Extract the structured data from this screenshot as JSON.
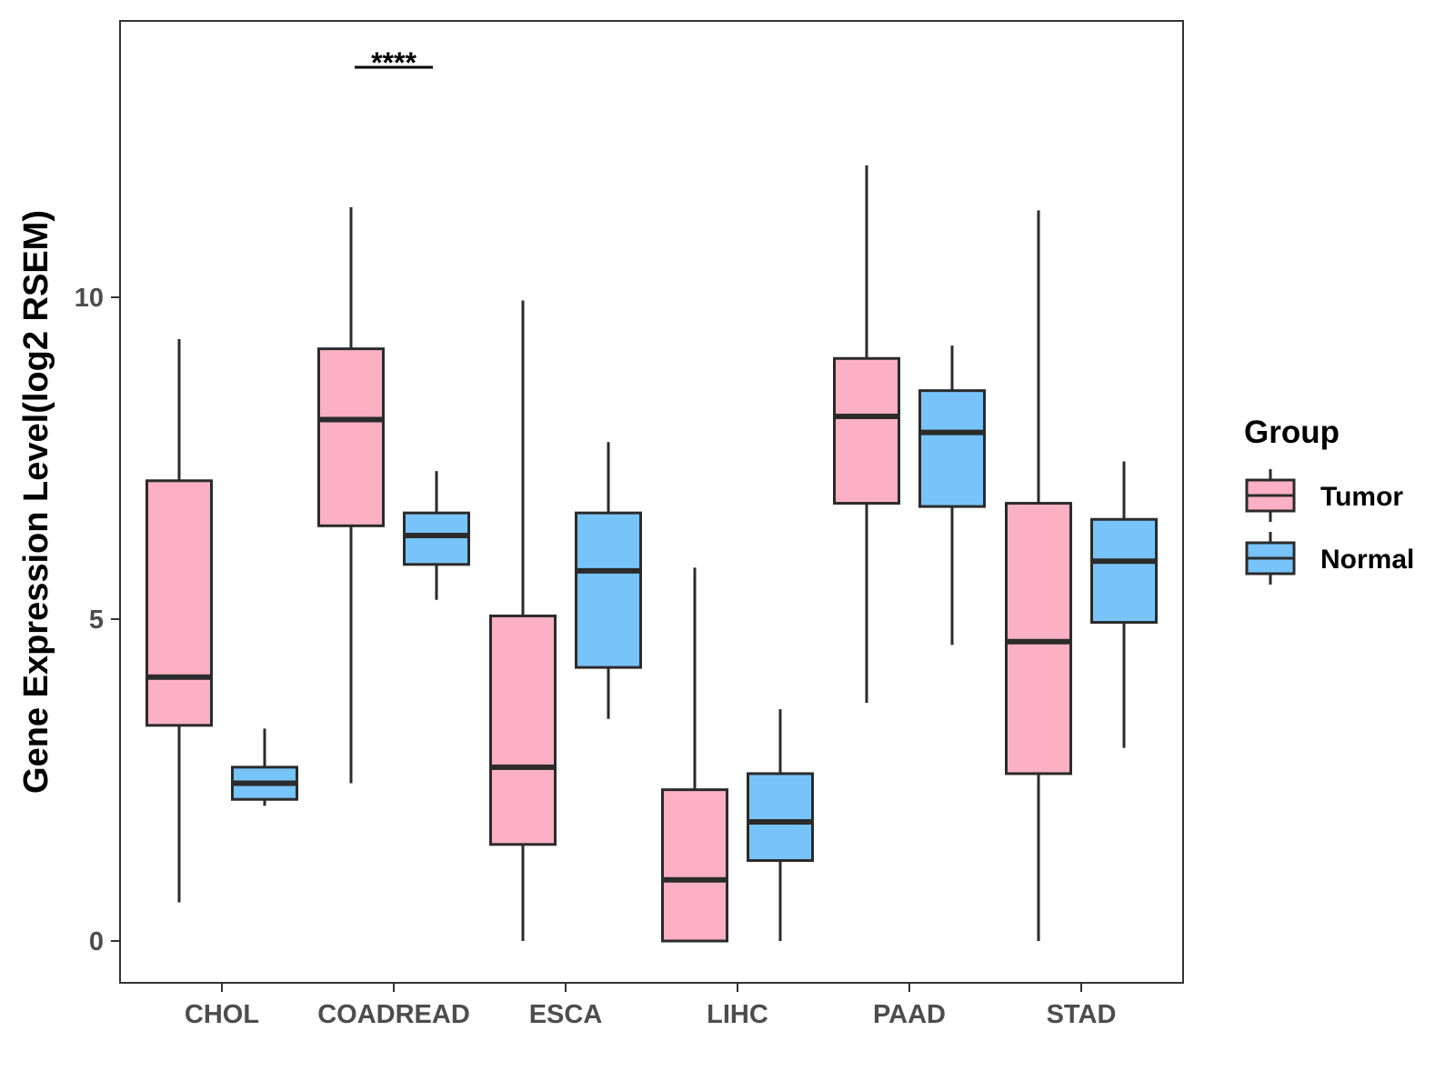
{
  "chart_data": {
    "type": "boxplot",
    "title": "",
    "xlabel": "",
    "ylabel": "Gene Expression Level(log2 RSEM)",
    "ylim": [
      -0.65,
      14.3
    ],
    "yticks": [
      0,
      5,
      10
    ],
    "ytick_labels": [
      "0",
      "5",
      "10"
    ],
    "grid": false,
    "categories": [
      "CHOL",
      "COADREAD",
      "ESCA",
      "LIHC",
      "PAAD",
      "STAD"
    ],
    "series": [
      {
        "name": "Tumor",
        "color": "#FBB1C3",
        "boxes": [
          {
            "min": 0.6,
            "q1": 3.35,
            "median": 4.1,
            "q3": 7.15,
            "max": 9.35
          },
          {
            "min": 2.45,
            "q1": 6.45,
            "median": 8.1,
            "q3": 9.2,
            "max": 11.4
          },
          {
            "min": 0.0,
            "q1": 1.5,
            "median": 2.7,
            "q3": 5.05,
            "max": 9.95
          },
          {
            "min": 0.0,
            "q1": 0.0,
            "median": 0.95,
            "q3": 2.35,
            "max": 5.8
          },
          {
            "min": 3.7,
            "q1": 6.8,
            "median": 8.15,
            "q3": 9.05,
            "max": 12.05
          },
          {
            "min": 0.0,
            "q1": 2.6,
            "median": 4.65,
            "q3": 6.8,
            "max": 11.35
          }
        ]
      },
      {
        "name": "Normal",
        "color": "#78C4FA",
        "boxes": [
          {
            "min": 2.1,
            "q1": 2.2,
            "median": 2.45,
            "q3": 2.7,
            "max": 3.3
          },
          {
            "min": 5.3,
            "q1": 5.85,
            "median": 6.3,
            "q3": 6.65,
            "max": 7.3
          },
          {
            "min": 3.45,
            "q1": 4.25,
            "median": 5.75,
            "q3": 6.65,
            "max": 7.75
          },
          {
            "min": 0.0,
            "q1": 1.25,
            "median": 1.85,
            "q3": 2.6,
            "max": 3.6
          },
          {
            "min": 4.6,
            "q1": 6.75,
            "median": 7.9,
            "q3": 8.55,
            "max": 9.25
          },
          {
            "min": 3.0,
            "q1": 4.95,
            "median": 5.9,
            "q3": 6.55,
            "max": 7.45
          }
        ]
      }
    ],
    "legend": {
      "title": "Group",
      "position": "right",
      "entries": [
        "Tumor",
        "Normal"
      ]
    },
    "annotations": [
      {
        "category": "COADREAD",
        "label": "****"
      }
    ]
  }
}
